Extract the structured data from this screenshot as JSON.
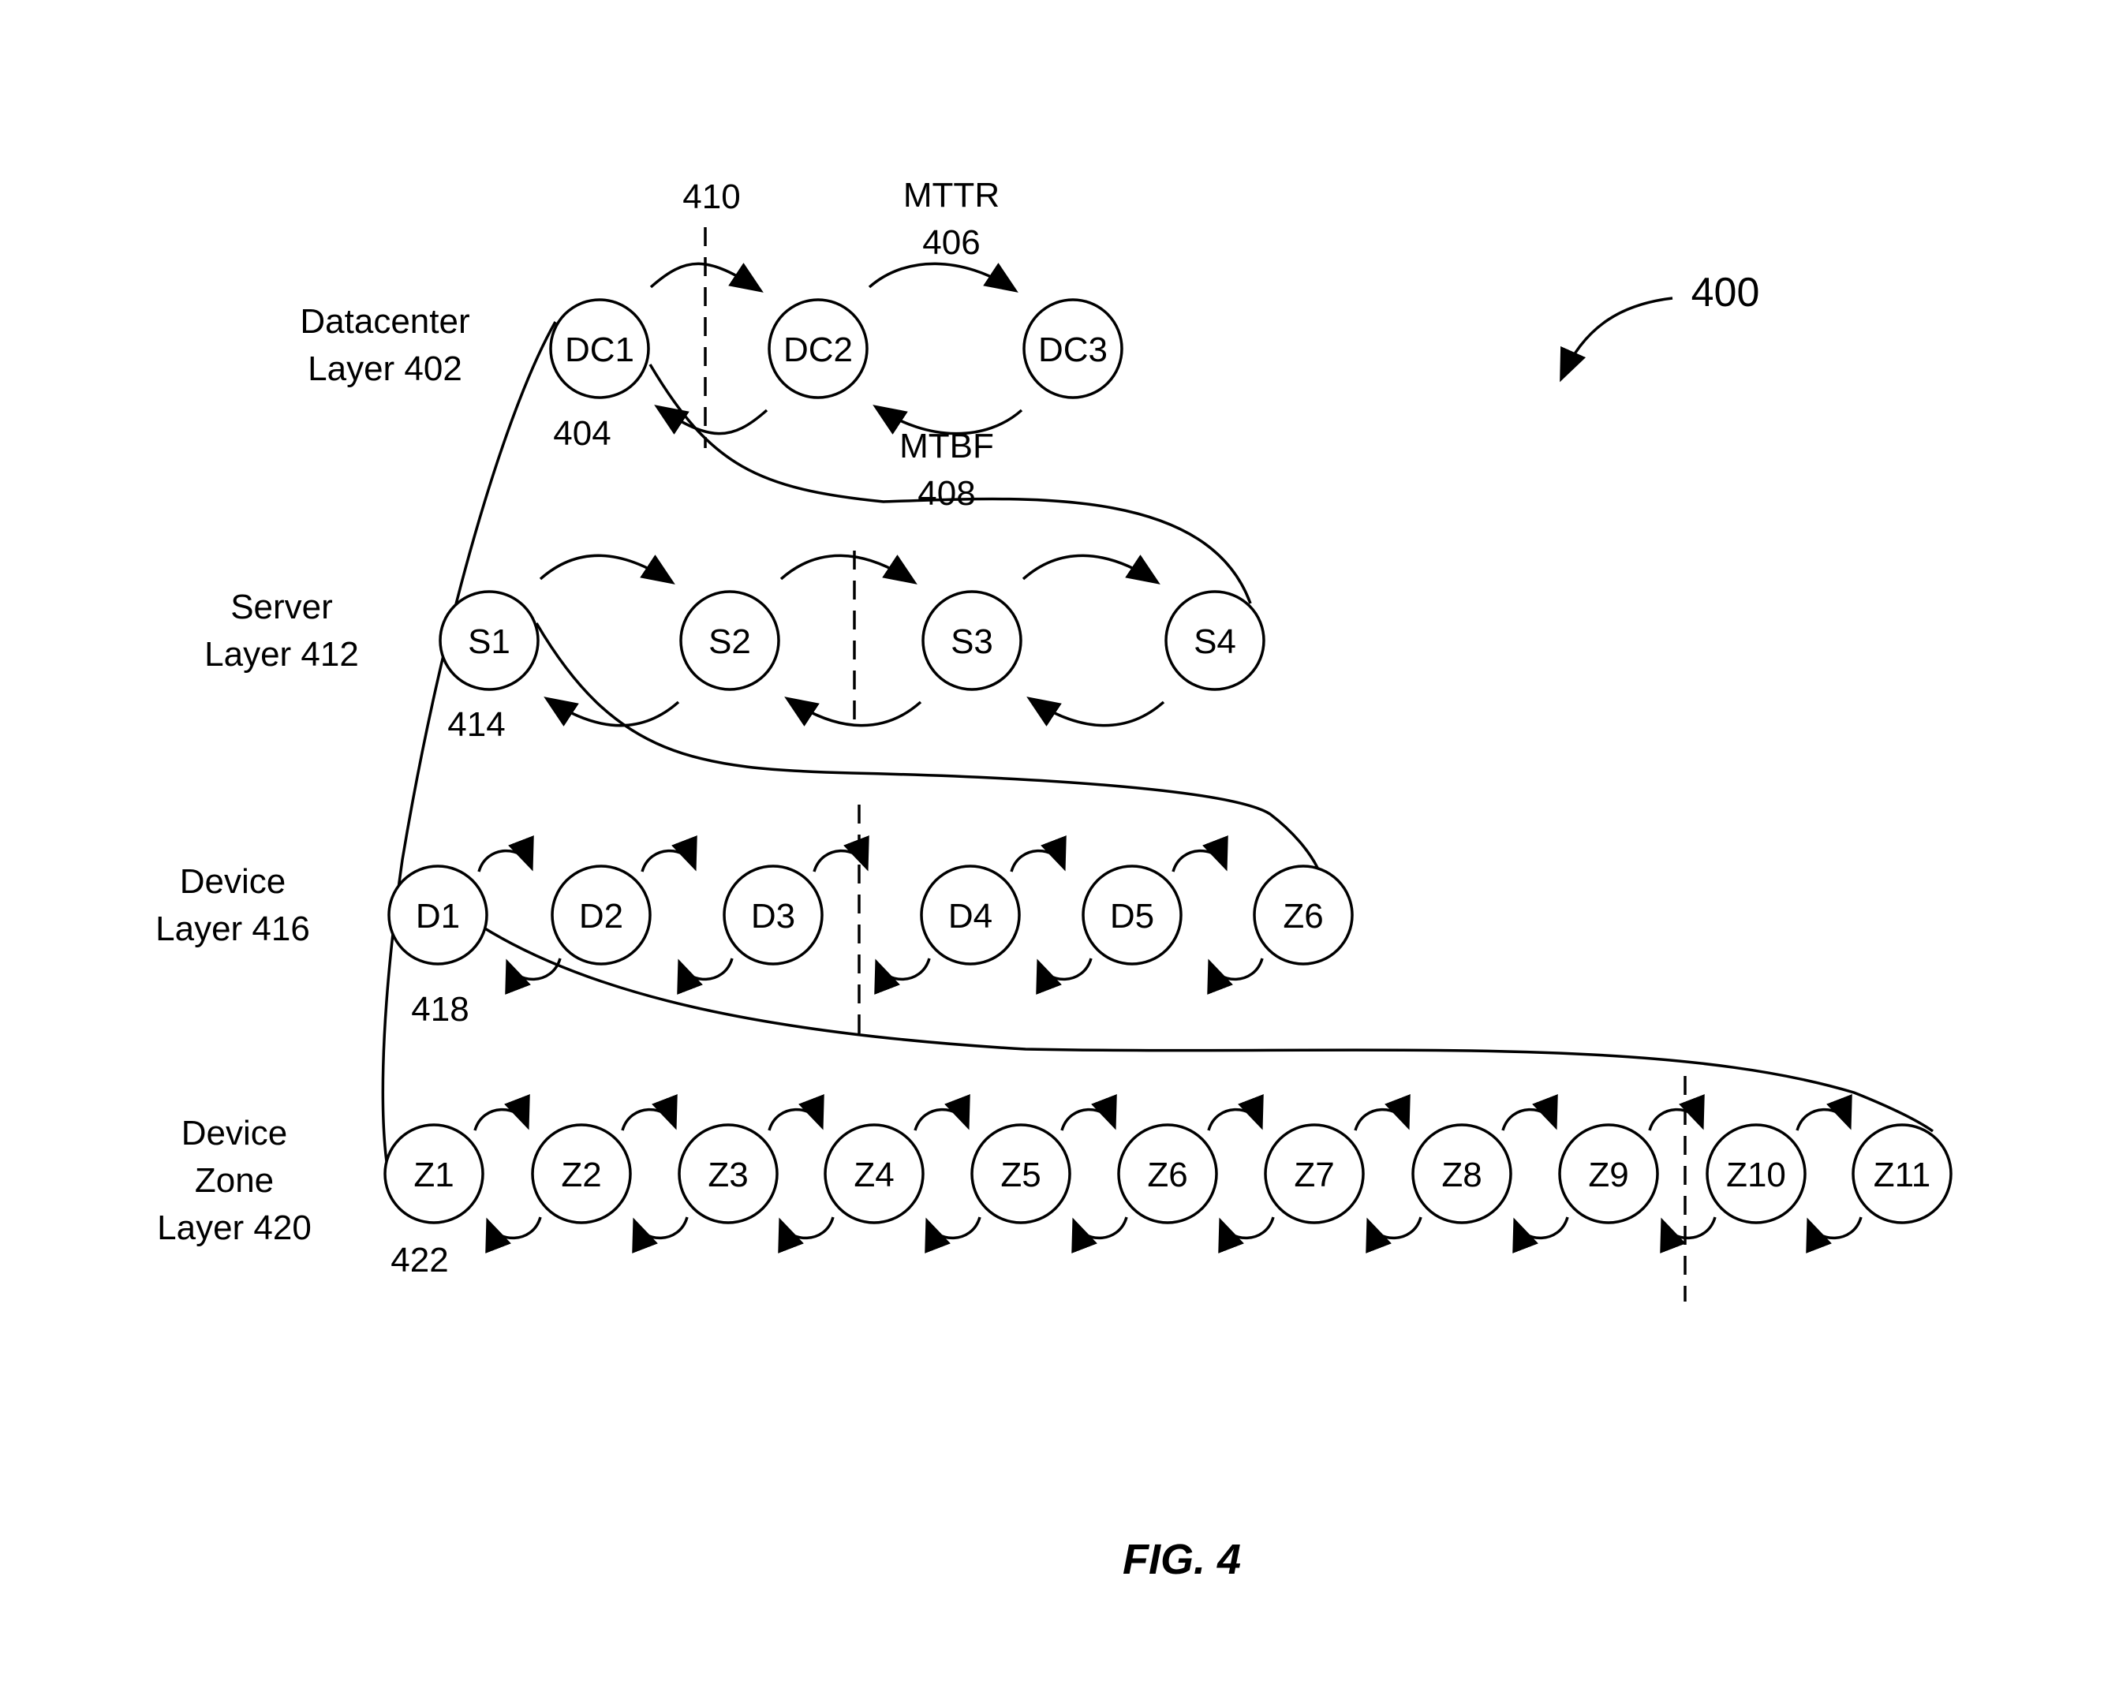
{
  "figure": {
    "ref": "400",
    "caption": "FIG. 4"
  },
  "layers": [
    {
      "id": "datacenter",
      "label_lines": [
        "Datacenter",
        "Layer 402"
      ],
      "first_node_ref": "404",
      "nodes": [
        "DC1",
        "DC2",
        "DC3"
      ]
    },
    {
      "id": "server",
      "label_lines": [
        "Server",
        "Layer 412"
      ],
      "first_node_ref": "414",
      "nodes": [
        "S1",
        "S2",
        "S3",
        "S4"
      ]
    },
    {
      "id": "device",
      "label_lines": [
        "Device",
        "Layer 416"
      ],
      "first_node_ref": "418",
      "nodes": [
        "D1",
        "D2",
        "D3",
        "D4",
        "D5",
        "Z6"
      ]
    },
    {
      "id": "zone",
      "label_lines": [
        "Device",
        "Zone",
        "Layer 420"
      ],
      "first_node_ref": "422",
      "nodes": [
        "Z1",
        "Z2",
        "Z3",
        "Z4",
        "Z5",
        "Z6",
        "Z7",
        "Z8",
        "Z9",
        "Z10",
        "Z11"
      ]
    }
  ],
  "annotations": {
    "partition_ref": "410",
    "mttr": [
      "MTTR",
      "406"
    ],
    "mtbf": [
      "MTBF",
      "408"
    ]
  }
}
